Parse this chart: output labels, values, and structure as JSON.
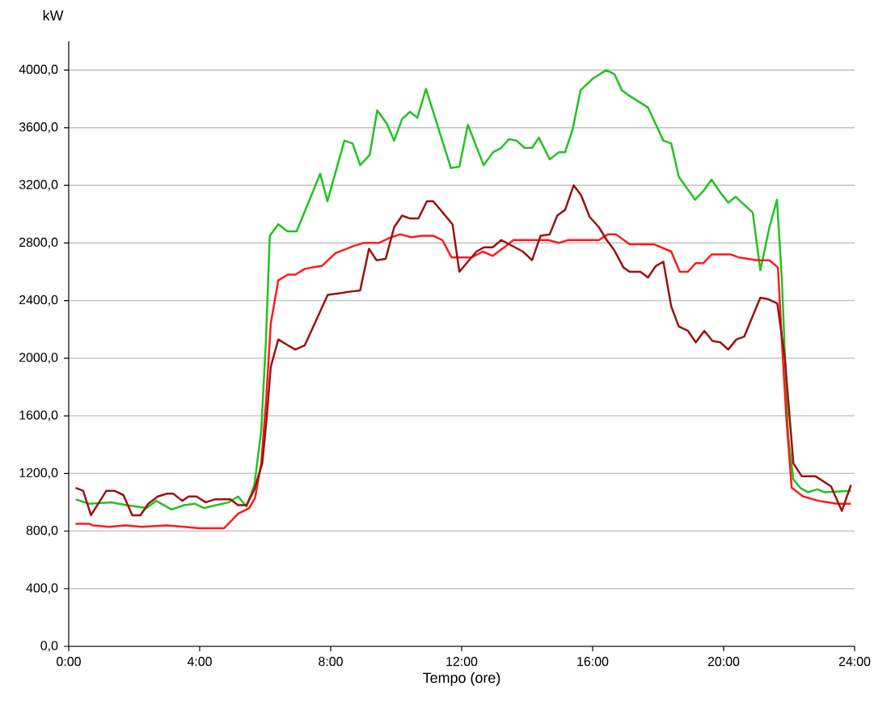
{
  "chart_data": {
    "type": "line",
    "xlabel": "Tempo (ore)",
    "ylabel": "kW",
    "xlim": [
      0,
      24
    ],
    "ylim": [
      0,
      4200
    ],
    "xticks": [
      {
        "value": 0,
        "label": "0:00"
      },
      {
        "value": 4,
        "label": "4:00"
      },
      {
        "value": 8,
        "label": "8:00"
      },
      {
        "value": 12,
        "label": "12:00"
      },
      {
        "value": 16,
        "label": "16:00"
      },
      {
        "value": 20,
        "label": "20:00"
      },
      {
        "value": 24,
        "label": "24:00"
      }
    ],
    "yticks": [
      {
        "value": 0,
        "label": "0,0"
      },
      {
        "value": 400,
        "label": "400,0"
      },
      {
        "value": 800,
        "label": "800,0"
      },
      {
        "value": 1200,
        "label": "1200,0"
      },
      {
        "value": 1600,
        "label": "1600,0"
      },
      {
        "value": 2000,
        "label": "2000,0"
      },
      {
        "value": 2400,
        "label": "2400,0"
      },
      {
        "value": 2800,
        "label": "2800,0"
      },
      {
        "value": 3200,
        "label": "3200,0"
      },
      {
        "value": 3600,
        "label": "3600,0"
      },
      {
        "value": 4000,
        "label": "4000,0"
      }
    ],
    "grid": "y",
    "series": [
      {
        "color": "#22c322",
        "x": [
          0.21,
          0.63,
          1.3,
          1.77,
          2.38,
          2.67,
          3.14,
          3.52,
          3.85,
          4.13,
          4.51,
          4.89,
          5.17,
          5.43,
          5.67,
          5.88,
          6.02,
          6.14,
          6.4,
          6.68,
          6.96,
          7.68,
          7.9,
          8.42,
          8.67,
          8.9,
          9.19,
          9.42,
          9.71,
          9.94,
          10.18,
          10.42,
          10.65,
          10.91,
          11.67,
          11.93,
          12.19,
          12.67,
          12.96,
          13.21,
          13.44,
          13.68,
          13.92,
          14.15,
          14.36,
          14.69,
          14.97,
          15.16,
          15.39,
          15.63,
          16.0,
          16.42,
          16.67,
          16.89,
          17.13,
          17.69,
          18.16,
          18.4,
          18.63,
          19.13,
          19.38,
          19.63,
          19.9,
          20.14,
          20.37,
          20.89,
          21.12,
          21.4,
          21.63,
          21.78,
          21.97,
          22.13,
          22.34,
          22.57,
          22.86,
          23.09,
          23.89
        ],
        "values": [
          1020,
          990,
          1000,
          980,
          960,
          1010,
          950,
          980,
          990,
          960,
          980,
          1000,
          1040,
          970,
          1120,
          1500,
          2110,
          2850,
          2930,
          2880,
          2880,
          3280,
          3090,
          3510,
          3490,
          3340,
          3410,
          3720,
          3630,
          3510,
          3660,
          3710,
          3670,
          3870,
          3320,
          3330,
          3620,
          3340,
          3430,
          3460,
          3520,
          3510,
          3460,
          3460,
          3530,
          3380,
          3430,
          3430,
          3590,
          3860,
          3940,
          4000,
          3970,
          3860,
          3820,
          3740,
          3510,
          3490,
          3260,
          3100,
          3160,
          3240,
          3150,
          3080,
          3120,
          3010,
          2610,
          2910,
          3100,
          2540,
          1460,
          1160,
          1100,
          1070,
          1090,
          1070,
          1080
        ]
      },
      {
        "color": "#ff1a1a",
        "x": [
          0.21,
          0.63,
          0.73,
          1.25,
          1.72,
          2.24,
          3.0,
          3.52,
          3.99,
          4.75,
          5.17,
          5.51,
          5.69,
          5.88,
          6.02,
          6.17,
          6.4,
          6.69,
          6.92,
          7.21,
          7.44,
          7.73,
          8.01,
          8.15,
          8.72,
          9.0,
          9.47,
          9.85,
          10.13,
          10.46,
          10.79,
          11.13,
          11.41,
          11.69,
          12.31,
          12.64,
          12.95,
          13.3,
          13.58,
          14.15,
          14.64,
          14.97,
          15.25,
          16.19,
          16.47,
          16.71,
          17.13,
          17.88,
          18.4,
          18.66,
          18.91,
          19.15,
          19.38,
          19.63,
          20.22,
          20.46,
          21.03,
          21.4,
          21.66,
          21.78,
          21.92,
          22.08,
          22.43,
          22.9,
          23.47,
          23.89
        ],
        "values": [
          850,
          850,
          840,
          830,
          840,
          830,
          840,
          830,
          820,
          820,
          920,
          960,
          1030,
          1270,
          1680,
          2240,
          2540,
          2580,
          2580,
          2620,
          2630,
          2640,
          2700,
          2730,
          2780,
          2800,
          2800,
          2840,
          2860,
          2840,
          2850,
          2850,
          2820,
          2700,
          2700,
          2740,
          2710,
          2770,
          2820,
          2820,
          2820,
          2800,
          2820,
          2820,
          2860,
          2860,
          2790,
          2790,
          2740,
          2600,
          2600,
          2660,
          2660,
          2720,
          2720,
          2700,
          2680,
          2680,
          2630,
          2110,
          1570,
          1100,
          1040,
          1010,
          990,
          990
        ]
      },
      {
        "color": "#9b1212",
        "x": [
          0.21,
          0.44,
          0.68,
          1.15,
          1.39,
          1.67,
          1.94,
          2.19,
          2.43,
          2.72,
          3.0,
          3.19,
          3.47,
          3.66,
          3.9,
          4.18,
          4.46,
          4.94,
          5.17,
          5.43,
          5.67,
          5.91,
          6.04,
          6.17,
          6.4,
          6.69,
          6.92,
          7.21,
          7.91,
          8.24,
          8.53,
          8.9,
          9.17,
          9.4,
          9.68,
          9.94,
          10.18,
          10.42,
          10.68,
          10.94,
          11.13,
          11.72,
          11.93,
          12.19,
          12.45,
          12.69,
          12.95,
          13.21,
          13.54,
          13.87,
          14.15,
          14.41,
          14.69,
          14.92,
          15.16,
          15.42,
          15.65,
          15.91,
          16.19,
          16.43,
          16.66,
          16.94,
          17.13,
          17.46,
          17.69,
          17.93,
          18.16,
          18.4,
          18.63,
          18.91,
          19.15,
          19.41,
          19.66,
          19.9,
          20.14,
          20.39,
          20.63,
          21.12,
          21.36,
          21.64,
          21.87,
          22.13,
          22.39,
          22.81,
          23.28,
          23.61,
          23.89
        ],
        "values": [
          1100,
          1080,
          910,
          1080,
          1080,
          1050,
          910,
          910,
          990,
          1040,
          1060,
          1060,
          1010,
          1040,
          1040,
          1000,
          1020,
          1020,
          980,
          980,
          1090,
          1270,
          1570,
          1940,
          2130,
          2090,
          2060,
          2090,
          2440,
          2450,
          2460,
          2470,
          2760,
          2680,
          2690,
          2910,
          2990,
          2970,
          2970,
          3090,
          3090,
          2930,
          2600,
          2670,
          2740,
          2770,
          2770,
          2820,
          2780,
          2740,
          2680,
          2850,
          2860,
          2990,
          3030,
          3200,
          3130,
          2980,
          2910,
          2820,
          2750,
          2630,
          2600,
          2600,
          2560,
          2640,
          2670,
          2360,
          2220,
          2190,
          2110,
          2190,
          2120,
          2110,
          2060,
          2130,
          2150,
          2420,
          2410,
          2380,
          2000,
          1270,
          1180,
          1180,
          1110,
          940,
          1120
        ]
      }
    ]
  }
}
